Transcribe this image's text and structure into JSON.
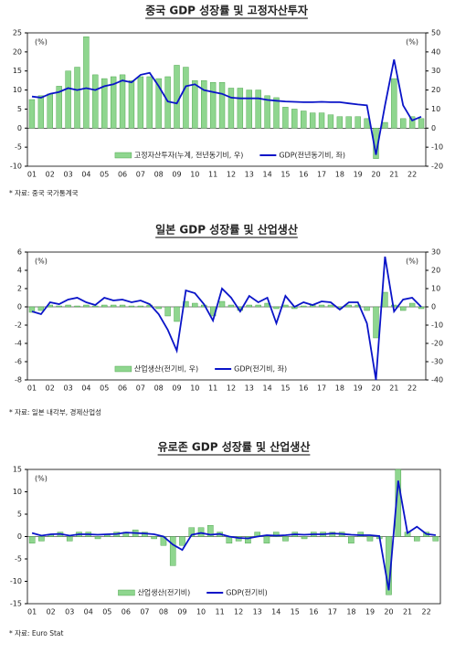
{
  "chart_data": [
    {
      "type": "combo",
      "title": "중국 GDP 성장률 및 고정자산투자",
      "left_unit": "(%)",
      "right_unit": "(%)",
      "source": "* 자료: 중국 국가통계국",
      "categories": [
        "01",
        null,
        "02",
        null,
        "03",
        null,
        "04",
        null,
        "05",
        null,
        "06",
        null,
        "07",
        null,
        "08",
        null,
        "09",
        null,
        "10",
        null,
        "11",
        null,
        "12",
        null,
        "13",
        null,
        "14",
        null,
        "15",
        null,
        "16",
        null,
        "17",
        null,
        "18",
        null,
        "19",
        null,
        "20",
        null,
        "21",
        null,
        "22",
        null
      ],
      "ylim": [
        -10,
        25
      ],
      "yticks": [
        -10,
        -5,
        0,
        5,
        10,
        15,
        20,
        25
      ],
      "y2lim": [
        -20,
        50
      ],
      "y2ticks": [
        -20,
        -10,
        0,
        10,
        20,
        30,
        40,
        50
      ],
      "series": [
        {
          "name": "고정자산투자(누계, 전년동기비, 우)",
          "kind": "bar",
          "axis": "y2",
          "color": "#8fd68f",
          "values": [
            15,
            17,
            18,
            22,
            30,
            32,
            48,
            28,
            26,
            27,
            28,
            25,
            27,
            27,
            26,
            27,
            33,
            32,
            25,
            25,
            24,
            24,
            21,
            21,
            20,
            20,
            17,
            16,
            11,
            10,
            9,
            8,
            8,
            7,
            6,
            6,
            6,
            5,
            -16,
            3,
            26,
            5,
            6,
            5
          ]
        },
        {
          "name": "GDP(전년동기비, 좌)",
          "kind": "line",
          "color": "#0a14c8",
          "values": [
            8.3,
            8.0,
            9.0,
            9.5,
            10.5,
            10.0,
            10.5,
            10.0,
            11.0,
            11.5,
            12.5,
            12.0,
            14.0,
            14.5,
            11.0,
            7.0,
            6.5,
            11.0,
            11.5,
            10.0,
            9.5,
            9.0,
            8.0,
            7.8,
            7.8,
            7.8,
            7.4,
            7.2,
            7.0,
            6.9,
            6.8,
            6.8,
            6.9,
            6.8,
            6.8,
            6.5,
            6.2,
            6.0,
            -7.0,
            6.0,
            18.0,
            6.0,
            2.0,
            3.0
          ]
        }
      ]
    },
    {
      "type": "combo",
      "title": "일본 GDP 성장률 및 산업생산",
      "left_unit": "(%)",
      "right_unit": "(%)",
      "source": "* 자료: 일본 내각부, 경제산업성",
      "categories": [
        "01",
        null,
        "02",
        null,
        "03",
        null,
        "04",
        null,
        "05",
        null,
        "06",
        null,
        "07",
        null,
        "08",
        null,
        "09",
        null,
        "10",
        null,
        "11",
        null,
        "12",
        null,
        "13",
        null,
        "14",
        null,
        "15",
        null,
        "16",
        null,
        "17",
        null,
        "18",
        null,
        "19",
        null,
        "20",
        null,
        "21",
        null,
        "22",
        null
      ],
      "ylim": [
        -8,
        6
      ],
      "yticks": [
        -8,
        -6,
        -4,
        -2,
        0,
        2,
        4,
        6
      ],
      "y2lim": [
        -40,
        30
      ],
      "y2ticks": [
        -40,
        -30,
        -20,
        -10,
        0,
        10,
        20,
        30
      ],
      "series": [
        {
          "name": "산업생산(전기비, 우)",
          "kind": "bar",
          "axis": "y2",
          "color": "#8fd68f",
          "values": [
            -3,
            -2,
            1,
            0.5,
            1,
            0.5,
            1,
            0.5,
            1,
            1,
            1,
            0.5,
            0.5,
            1,
            -1,
            -5,
            -8,
            3,
            2,
            1,
            -5,
            3,
            1,
            -2,
            1,
            1,
            2,
            -1,
            1,
            -1,
            0.5,
            1,
            1,
            1,
            -1,
            1,
            1,
            -2,
            -17,
            8,
            1,
            -2,
            2,
            -1
          ]
        },
        {
          "name": "GDP(전기비, 좌)",
          "kind": "line",
          "color": "#0a14c8",
          "values": [
            -0.5,
            -0.8,
            0.5,
            0.3,
            0.8,
            1.0,
            0.5,
            0.2,
            1.0,
            0.7,
            0.8,
            0.5,
            0.7,
            0.3,
            -0.8,
            -2.5,
            -4.8,
            1.8,
            1.5,
            0.3,
            -1.5,
            2.0,
            1.0,
            -0.5,
            1.2,
            0.5,
            1.0,
            -1.8,
            1.2,
            0.0,
            0.5,
            0.2,
            0.6,
            0.5,
            -0.3,
            0.5,
            0.5,
            -1.8,
            -8.0,
            5.5,
            -0.5,
            0.8,
            1.0,
            0.0
          ]
        }
      ]
    },
    {
      "type": "combo",
      "title": "유로존 GDP 성장률 및 산업생산",
      "left_unit": "(%)",
      "source": "* 자료: Euro Stat",
      "categories": [
        "01",
        null,
        "02",
        null,
        "03",
        null,
        "04",
        null,
        "05",
        null,
        "06",
        null,
        "07",
        null,
        "08",
        null,
        "09",
        null,
        "10",
        null,
        "11",
        null,
        "12",
        null,
        "13",
        null,
        "14",
        null,
        "15",
        null,
        "16",
        null,
        "17",
        null,
        "18",
        null,
        "19",
        null,
        "20",
        null,
        "21",
        null,
        "22",
        null
      ],
      "ylim": [
        -15,
        15
      ],
      "yticks": [
        -15,
        -10,
        -5,
        0,
        5,
        10,
        15
      ],
      "series": [
        {
          "name": "산업생산(전기비)",
          "kind": "bar",
          "color": "#8fd68f",
          "values": [
            -1.5,
            -1,
            0.5,
            1,
            -1,
            1,
            1,
            -0.5,
            0.5,
            1,
            1,
            1.5,
            1,
            -0.5,
            -2,
            -6.5,
            -2,
            2,
            2,
            2.5,
            1,
            -1.5,
            -1,
            -1.5,
            1,
            -1.5,
            1,
            -1,
            1,
            -0.5,
            1,
            1,
            1,
            1,
            -1.5,
            1,
            -1,
            -0.5,
            -13,
            15,
            1,
            -1,
            1,
            -1
          ]
        },
        {
          "name": "GDP(전기비)",
          "kind": "line",
          "color": "#0a14c8",
          "values": [
            0.8,
            0.2,
            0.5,
            0.6,
            0.2,
            0.5,
            0.5,
            0.4,
            0.5,
            0.6,
            0.9,
            0.8,
            0.7,
            0.5,
            0.0,
            -1.8,
            -3.0,
            0.4,
            0.8,
            0.4,
            0.6,
            0.0,
            -0.3,
            -0.4,
            0.0,
            0.3,
            0.2,
            0.3,
            0.5,
            0.4,
            0.5,
            0.5,
            0.7,
            0.6,
            0.4,
            0.3,
            0.3,
            0.1,
            -12.0,
            12.5,
            0.8,
            2.2,
            0.6,
            0.3
          ]
        }
      ]
    }
  ]
}
